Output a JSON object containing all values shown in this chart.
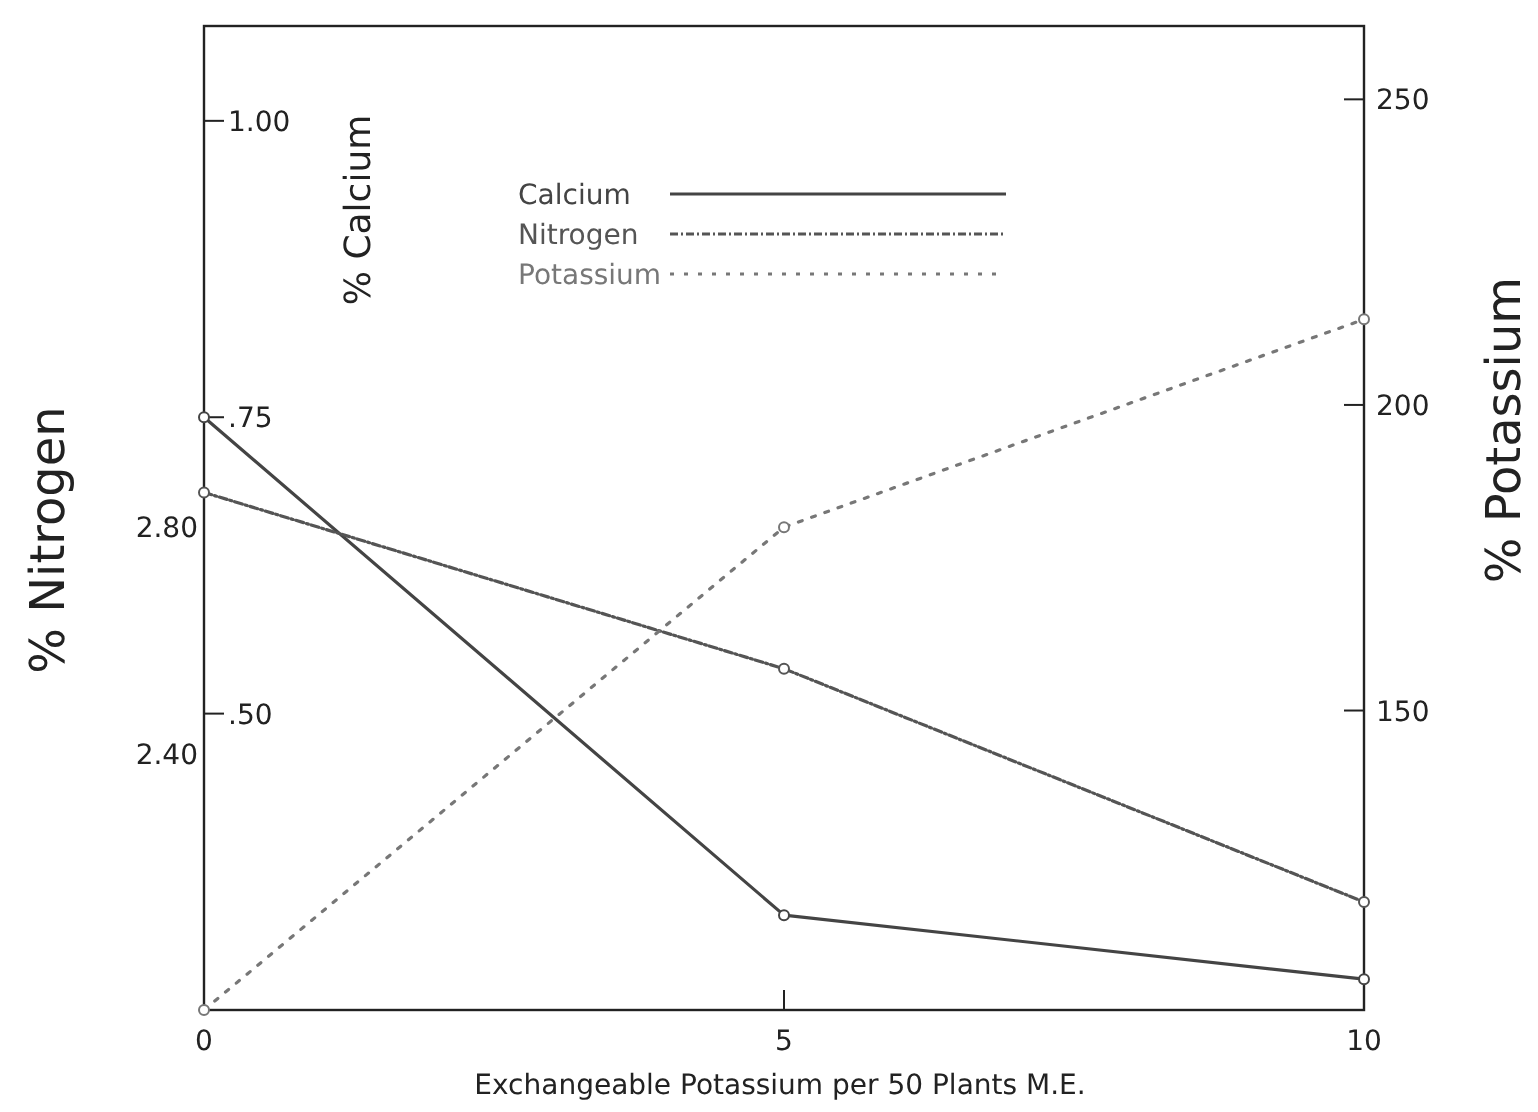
{
  "chart_data": {
    "type": "line",
    "xlabel": "Exchangeable Potassium per 50 Plants M.E.",
    "ylabel": "% Nitrogen",
    "y2label": "% Potassium",
    "y3label": "% Calcium",
    "x": [
      0,
      5,
      10
    ],
    "xlim": [
      0,
      10
    ],
    "xticks": [
      0,
      5,
      10
    ],
    "ylim": [
      1.95,
      3.68
    ],
    "yticks": [
      {
        "value": 2.4,
        "label": "2.40"
      },
      {
        "value": 2.8,
        "label": "2.80"
      }
    ],
    "y2lim": [
      101,
      262
    ],
    "y2ticks": [
      150,
      200,
      250
    ],
    "y3lim": [
      0.25,
      1.08
    ],
    "y3ticks": [
      {
        "value": 0.5,
        "label": ".50"
      },
      {
        "value": 0.75,
        "label": ".75"
      },
      {
        "value": 1,
        "label": "1.00"
      }
    ],
    "series": [
      {
        "name": "Calcium",
        "color": "#444444",
        "axis": "y3",
        "line_style": "solid",
        "values": [
          0.75,
          0.33,
          0.276
        ]
      },
      {
        "name": "Nitrogen",
        "color": "#555555",
        "axis": "y",
        "line_style": "dashdot",
        "values": [
          2.86,
          2.55,
          2.14
        ]
      },
      {
        "name": "Potassium",
        "color": "#777777",
        "axis": "y2",
        "line_style": "dotted",
        "values": [
          101,
          180,
          214
        ]
      }
    ],
    "marker": "circle",
    "legend": "top",
    "grid": false
  }
}
